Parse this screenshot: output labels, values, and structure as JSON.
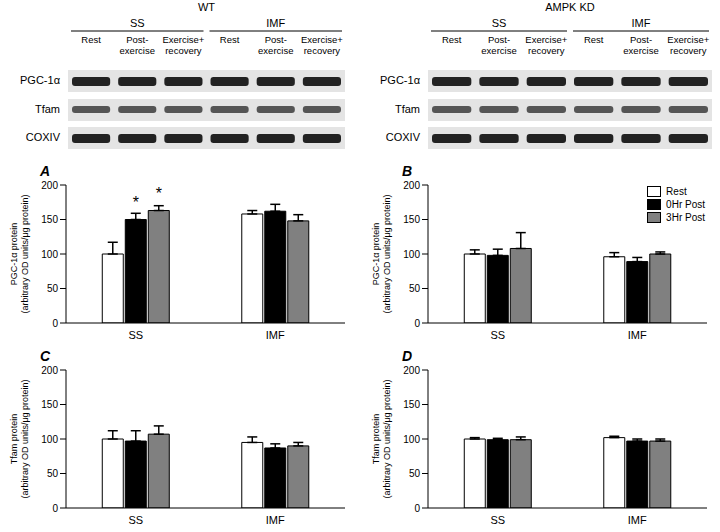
{
  "blots": [
    {
      "title": "WT",
      "groups": [
        "SS",
        "IMF"
      ],
      "lanes": [
        [
          "Rest"
        ],
        [
          "Post-",
          "exercise"
        ],
        [
          "Exercise+",
          "recovery"
        ]
      ],
      "rows": [
        "PGC-1α",
        "Tfam",
        "COXIV"
      ]
    },
    {
      "title": "AMPK KD",
      "groups": [
        "SS",
        "IMF"
      ],
      "lanes": [
        [
          "Rest"
        ],
        [
          "Post-",
          "exercise"
        ],
        [
          "Exercise+",
          "recovery"
        ]
      ],
      "rows": [
        "PGC-1α",
        "Tfam",
        "COXIV"
      ]
    }
  ],
  "chart_data": [
    {
      "type": "bar",
      "title": "A",
      "ylabel": [
        "PGC-1α protein",
        "(arbitrary OD units/μg protein)"
      ],
      "categories": [
        "SS",
        "IMF"
      ],
      "series": [
        {
          "name": "Rest",
          "color": "#ffffff",
          "values": [
            100,
            158
          ],
          "errors": [
            17,
            5
          ]
        },
        {
          "name": "0Hr Post",
          "color": "#000000",
          "values": [
            150,
            162
          ],
          "errors": [
            9,
            10
          ]
        },
        {
          "name": "3Hr Post",
          "color": "#808080",
          "values": [
            163,
            148
          ],
          "errors": [
            7,
            9
          ]
        }
      ],
      "ylim": [
        0,
        200
      ],
      "yticks": [
        0,
        50,
        100,
        150,
        200
      ],
      "grid": false,
      "annotations": [
        {
          "text": "*",
          "category": "SS",
          "series": "0Hr Post"
        },
        {
          "text": "*",
          "category": "SS",
          "series": "3Hr Post"
        }
      ]
    },
    {
      "type": "bar",
      "title": "B",
      "ylabel": [
        "PGC-1α protein",
        "(arbitrary OD units/μg protein)"
      ],
      "categories": [
        "SS",
        "IMF"
      ],
      "series": [
        {
          "name": "Rest",
          "color": "#ffffff",
          "values": [
            100,
            96
          ],
          "errors": [
            6,
            6
          ]
        },
        {
          "name": "0Hr Post",
          "color": "#000000",
          "values": [
            98,
            89
          ],
          "errors": [
            9,
            6
          ]
        },
        {
          "name": "3Hr Post",
          "color": "#808080",
          "values": [
            108,
            100
          ],
          "errors": [
            23,
            3
          ]
        }
      ],
      "ylim": [
        0,
        200
      ],
      "yticks": [
        0,
        50,
        100,
        150,
        200
      ],
      "grid": false,
      "legend": "upper right"
    },
    {
      "type": "bar",
      "title": "C",
      "ylabel": [
        "Tfam protein",
        "(arbitrary OD units/μg protein)"
      ],
      "categories": [
        "SS",
        "IMF"
      ],
      "series": [
        {
          "name": "Rest",
          "color": "#ffffff",
          "values": [
            100,
            95
          ],
          "errors": [
            12,
            8
          ]
        },
        {
          "name": "0Hr Post",
          "color": "#000000",
          "values": [
            97,
            87
          ],
          "errors": [
            15,
            6
          ]
        },
        {
          "name": "3Hr Post",
          "color": "#808080",
          "values": [
            107,
            90
          ],
          "errors": [
            12,
            5
          ]
        }
      ],
      "ylim": [
        0,
        200
      ],
      "yticks": [
        0,
        50,
        100,
        150,
        200
      ],
      "grid": false
    },
    {
      "type": "bar",
      "title": "D",
      "ylabel": [
        "Tfam protein",
        "(arbitrary OD units/μg protein)"
      ],
      "categories": [
        "SS",
        "IMF"
      ],
      "series": [
        {
          "name": "Rest",
          "color": "#ffffff",
          "values": [
            100,
            102
          ],
          "errors": [
            2,
            2
          ]
        },
        {
          "name": "0Hr Post",
          "color": "#000000",
          "values": [
            99,
            97
          ],
          "errors": [
            2,
            3
          ]
        },
        {
          "name": "3Hr Post",
          "color": "#808080",
          "values": [
            99,
            97
          ],
          "errors": [
            4,
            3
          ]
        }
      ],
      "ylim": [
        0,
        200
      ],
      "yticks": [
        0,
        50,
        100,
        150,
        200
      ],
      "grid": false
    }
  ]
}
